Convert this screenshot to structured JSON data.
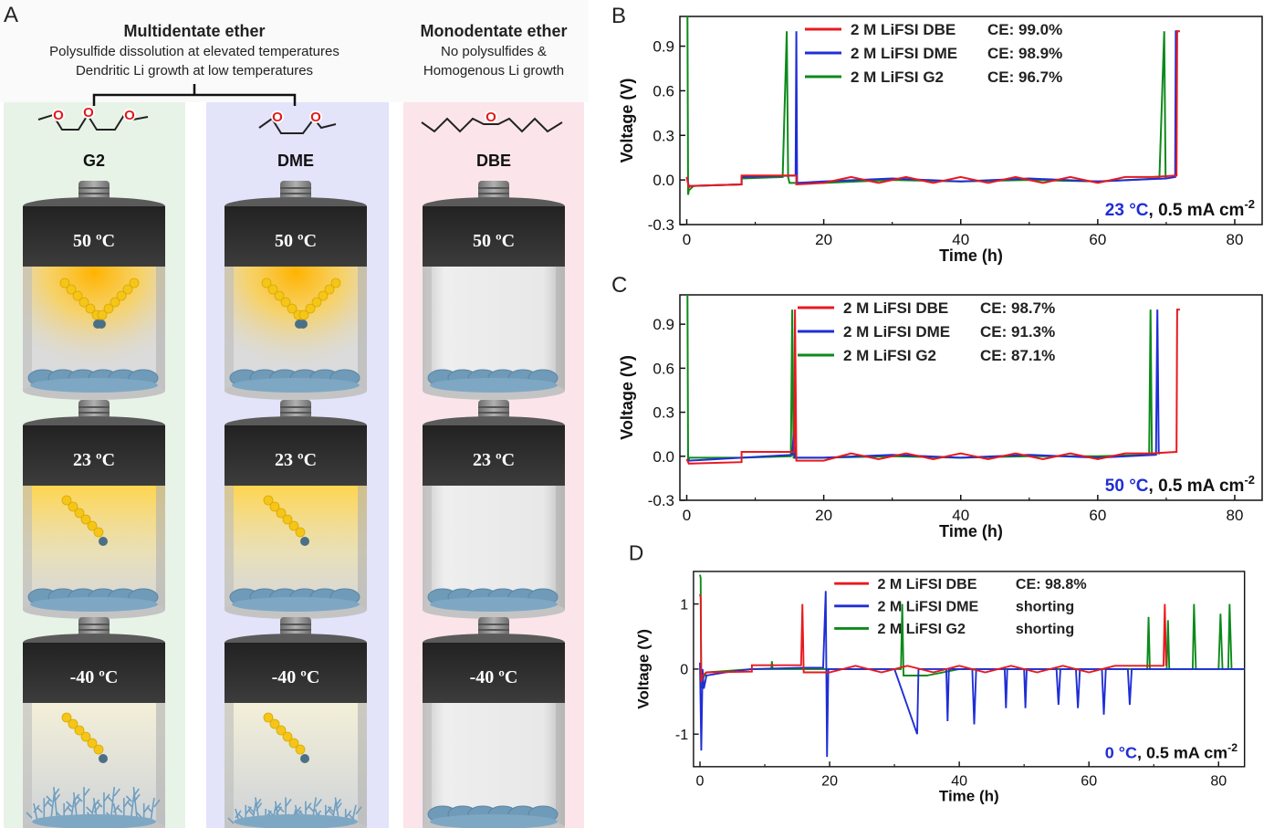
{
  "panel_a": {
    "letter": "A",
    "multidentate": {
      "title": "Multidentate ether",
      "line1": "Polysulfide dissolution at elevated temperatures",
      "line2": "Dendritic Li growth at low temperatures"
    },
    "monodentate": {
      "title": "Monodentate ether",
      "line1": "No polysulfides &",
      "line2": "Homogenous Li growth"
    },
    "columns": [
      {
        "name": "G2",
        "bg": "#e8f3e8"
      },
      {
        "name": "DME",
        "bg": "#e3e3fa"
      },
      {
        "name": "DBE",
        "bg": "#fbe5ea"
      }
    ],
    "temperatures": [
      "50 ºC",
      "23 ºC",
      "-40 ºC"
    ]
  },
  "chart_data": [
    {
      "type": "line",
      "letter": "B",
      "xlabel": "Time (h)",
      "ylabel": "Voltage (V)",
      "xlim": [
        -1,
        84
      ],
      "ylim": [
        -0.3,
        1.1
      ],
      "xticks": [
        0,
        20,
        40,
        60,
        80
      ],
      "yticks": [
        -0.3,
        0.0,
        0.3,
        0.6,
        0.9
      ],
      "ytick_format": 1,
      "condition_temp": "23 °C",
      "condition_rest": ", 0.5 mA cm",
      "condition_exp": "-2",
      "legend_position": "top-center",
      "series": [
        {
          "label": "2 M LiFSI DBE",
          "ce": "CE: 99.0%",
          "color": "#e8191f",
          "x": [
            0,
            0.3,
            0.5,
            8,
            8,
            16,
            16,
            20,
            24,
            28,
            32,
            36,
            40,
            44,
            48,
            52,
            56,
            60,
            64,
            68,
            71.5,
            71.6,
            72
          ],
          "y": [
            0.02,
            -0.05,
            -0.04,
            -0.03,
            0.03,
            0.03,
            -0.03,
            -0.02,
            0.02,
            -0.02,
            0.02,
            -0.02,
            0.02,
            -0.02,
            0.02,
            -0.02,
            0.02,
            -0.02,
            0.02,
            0.02,
            0.03,
            1.0,
            1.0
          ]
        },
        {
          "label": "2 M LiFSI DME",
          "ce": "CE: 98.9%",
          "color": "#1f2ed6",
          "x": [
            0,
            0.3,
            0.5,
            8,
            8,
            15.9,
            16,
            16.1,
            20,
            30,
            40,
            50,
            60,
            70,
            71.3,
            71.4,
            71.8
          ],
          "y": [
            0.02,
            -0.04,
            -0.04,
            -0.03,
            0.02,
            0.03,
            1.0,
            -0.02,
            -0.01,
            0.01,
            -0.01,
            0.01,
            -0.01,
            0.01,
            0.02,
            1.0,
            1.0
          ]
        },
        {
          "label": "2 M LiFSI G2",
          "ce": "CE: 96.7%",
          "color": "#0d8a1b",
          "x": [
            0,
            0.1,
            0.2,
            0.3,
            1,
            8,
            8,
            14,
            14.6,
            14.8,
            15,
            20,
            30,
            40,
            50,
            60,
            69,
            69.7,
            69.9,
            70.1
          ],
          "y": [
            1.1,
            1.1,
            -0.1,
            -0.07,
            -0.04,
            -0.03,
            0.01,
            0.02,
            1.0,
            0.02,
            -0.02,
            -0.02,
            0.0,
            -0.01,
            0.0,
            -0.01,
            0.01,
            1.0,
            0.02,
            0.02
          ]
        }
      ]
    },
    {
      "type": "line",
      "letter": "C",
      "xlabel": "Time (h)",
      "ylabel": "Voltage (V)",
      "xlim": [
        -1,
        84
      ],
      "ylim": [
        -0.3,
        1.1
      ],
      "xticks": [
        0,
        20,
        40,
        60,
        80
      ],
      "yticks": [
        -0.3,
        0.0,
        0.3,
        0.6,
        0.9
      ],
      "ytick_format": 1,
      "condition_temp": "50 °C",
      "condition_rest": ", 0.5 mA cm",
      "condition_exp": "-2",
      "legend_position": "top-center",
      "series": [
        {
          "label": "2 M LiFSI DBE",
          "ce": "CE: 98.7%",
          "color": "#e8191f",
          "x": [
            0,
            0.3,
            8,
            8,
            15.7,
            15.8,
            16,
            20,
            24,
            28,
            32,
            36,
            40,
            44,
            48,
            52,
            56,
            60,
            64,
            68,
            71.5,
            71.6,
            72
          ],
          "y": [
            -0.02,
            -0.05,
            -0.04,
            0.03,
            0.03,
            1.0,
            -0.03,
            -0.03,
            0.02,
            -0.02,
            0.02,
            -0.02,
            0.02,
            -0.02,
            0.02,
            -0.02,
            0.02,
            -0.02,
            0.02,
            0.02,
            0.03,
            1.0,
            1.0
          ]
        },
        {
          "label": "2 M LiFSI DME",
          "ce": "CE: 91.3%",
          "color": "#1f2ed6",
          "x": [
            0,
            0.3,
            8,
            15.4,
            15.6,
            15.8,
            20,
            30,
            40,
            50,
            60,
            68.5,
            68.7,
            68.9,
            69.1
          ],
          "y": [
            -0.02,
            -0.03,
            -0.01,
            0.01,
            0.15,
            -0.01,
            -0.01,
            0.01,
            -0.01,
            0.01,
            -0.01,
            0.01,
            1.0,
            0.02,
            0.02
          ]
        },
        {
          "label": "2 M LiFSI G2",
          "ce": "CE: 87.1%",
          "color": "#0d8a1b",
          "x": [
            0,
            0.1,
            0.2,
            0.4,
            8,
            15.2,
            15.4,
            15.6,
            20,
            30,
            40,
            50,
            60,
            67.5,
            67.7,
            67.9,
            68.1
          ],
          "y": [
            1.1,
            1.1,
            -0.03,
            -0.01,
            -0.01,
            0.0,
            1.0,
            -0.01,
            -0.01,
            0.0,
            -0.01,
            0.0,
            0.0,
            0.01,
            1.0,
            0.01,
            0.01
          ]
        }
      ]
    },
    {
      "type": "line",
      "letter": "D",
      "xlabel": "Time (h)",
      "ylabel": "Voltage (V)",
      "xlim": [
        -1,
        84
      ],
      "ylim": [
        -1.5,
        1.5
      ],
      "xticks": [
        0,
        20,
        40,
        60,
        80
      ],
      "yticks": [
        -1,
        0,
        1
      ],
      "ytick_format": 0,
      "condition_temp": "0 °C",
      "condition_rest": ", 0.5 mA cm",
      "condition_exp": "-2",
      "legend_position": "top-center",
      "series": [
        {
          "label": "2 M LiFSI DBE",
          "ce": "CE: 98.8%",
          "color": "#e8191f",
          "x": [
            0,
            0.1,
            0.2,
            0.4,
            1,
            8,
            8,
            15.6,
            15.8,
            16,
            20,
            24,
            28,
            32,
            36,
            40,
            44,
            48,
            52,
            56,
            60,
            64,
            68,
            71.5,
            71.7,
            71.9
          ],
          "y": [
            1.15,
            1.1,
            -0.2,
            -0.1,
            -0.05,
            -0.04,
            0.06,
            0.06,
            1.0,
            -0.05,
            -0.05,
            0.05,
            -0.05,
            0.05,
            -0.05,
            0.05,
            -0.05,
            0.05,
            -0.05,
            0.05,
            -0.05,
            0.05,
            0.05,
            0.05,
            1.0,
            0.05
          ]
        },
        {
          "label": "2 M LiFSI DME",
          "ce": "shorting",
          "color": "#1f2ed6",
          "x": [
            0,
            0.2,
            0.4,
            0.6,
            1,
            4,
            8,
            16,
            19,
            19.4,
            19.6,
            19.8,
            20,
            30,
            33.5,
            33.7,
            34,
            38,
            38.2,
            38.4,
            42,
            42.3,
            42.6,
            47,
            47.2,
            47.4,
            50,
            50.2,
            50.4,
            55,
            55.3,
            55.6,
            58,
            58.3,
            58.6,
            62,
            62.3,
            62.6,
            66,
            66.3,
            66.6,
            70,
            84
          ],
          "y": [
            0.1,
            -1.25,
            0.0,
            -0.3,
            -0.1,
            -0.05,
            0.0,
            0.02,
            0.02,
            1.2,
            -1.35,
            0.0,
            0.0,
            0.0,
            -1.0,
            0.0,
            0.0,
            0.0,
            -0.8,
            0.0,
            0.0,
            -0.85,
            0.0,
            0.0,
            -0.6,
            0.0,
            0.0,
            -0.6,
            0.0,
            0.0,
            -0.55,
            0.0,
            0.0,
            -0.6,
            0.0,
            0.0,
            -0.7,
            0.0,
            0.0,
            -0.55,
            0.0,
            0.0,
            0.0
          ]
        },
        {
          "label": "2 M LiFSI G2",
          "ce": "shorting",
          "color": "#0d8a1b",
          "x": [
            0,
            0.1,
            0.2,
            0.4,
            1,
            8,
            11,
            11.1,
            11.2,
            20,
            31,
            31.2,
            31.4,
            35,
            40,
            50,
            60,
            69,
            69.2,
            69.4,
            72,
            72.2,
            72.4,
            76,
            76.2,
            76.5,
            80,
            80.3,
            80.6,
            81.5,
            81.7,
            82,
            84
          ],
          "y": [
            1.45,
            1.4,
            -0.3,
            -0.15,
            -0.05,
            0.0,
            0.0,
            0.12,
            0.0,
            0.0,
            0.0,
            1.0,
            -0.1,
            -0.1,
            0.0,
            0.0,
            0.0,
            0.0,
            0.8,
            0.0,
            0.0,
            0.75,
            0.0,
            0.0,
            1.0,
            0.0,
            0.0,
            0.85,
            0.0,
            0.0,
            1.0,
            0.0,
            0.0
          ]
        }
      ]
    }
  ]
}
